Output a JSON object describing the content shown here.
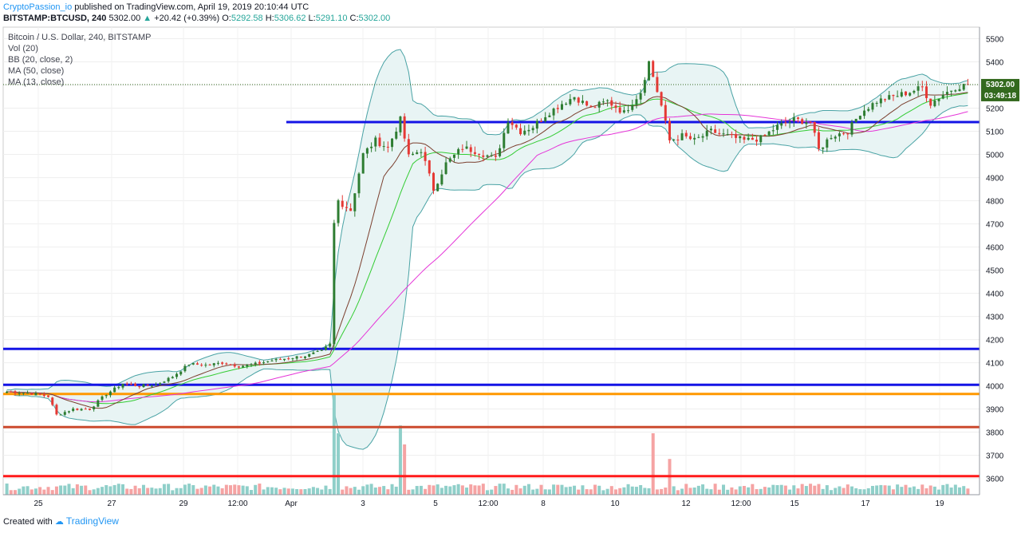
{
  "header": {
    "author": "CryptoPassion_io",
    "published_text": "published on TradingView.com, April 19, 2019 20:10:44 UTC",
    "symbol": "BITSTAMP:BTCUSD, 240",
    "last": "5302.00",
    "change_arrow": "▲",
    "change": "+20.42 (+0.39%)",
    "o_label": "O:",
    "o_value": "5292.58",
    "h_label": "H:",
    "h_value": "5306.62",
    "l_label": "L:",
    "l_value": "5291.10",
    "c_label": "C:",
    "c_value": "5302.00"
  },
  "legend": {
    "title": "Bitcoin / U.S. Dollar, 240, BITSTAMP",
    "vol": "Vol (20)",
    "bb": "BB (20, close, 2)",
    "ma50": "MA (50, close)",
    "ma13": "MA (13, close)"
  },
  "price_tag": {
    "price": "5302.00",
    "countdown": "03:49:18"
  },
  "footer": {
    "created_with": "Created with",
    "brand": "TradingView"
  },
  "colors": {
    "up": "#26a69a",
    "down": "#ef5350",
    "candle_up": "#2e7d32",
    "candle_down": "#e53935",
    "bb_band": "#4aa3a5",
    "bb_fill": "#e8f4f4",
    "ma50": "#e535d8",
    "ma13": "#7b3f2e",
    "bb_basis": "#33cc33",
    "blue_line": "#1414e6",
    "orange_line": "#ff9800",
    "brown_line": "#cc4a2e",
    "red_line": "#ff1a1a"
  },
  "chart_data": {
    "type": "candlestick",
    "title": "Bitcoin / U.S. Dollar, 240, BITSTAMP",
    "yticks": [
      3600,
      3700,
      3800,
      3900,
      4000,
      4100,
      4200,
      4300,
      4400,
      4500,
      4600,
      4700,
      4800,
      4900,
      5000,
      5100,
      5200,
      5300,
      5400,
      5500
    ],
    "ylim": [
      3530,
      5550
    ],
    "xticks": [
      "25",
      "27",
      "29",
      "12:00",
      "Apr",
      "3",
      "5",
      "12:00",
      "8",
      "10",
      "12",
      "12:00",
      "15",
      "17",
      "19"
    ],
    "last_price": 5302.0,
    "horizontal_lines": [
      {
        "price": 5140,
        "color": "#1414e6",
        "from_fraction": 0.29
      },
      {
        "price": 4160,
        "color": "#1414e6",
        "from_fraction": 0
      },
      {
        "price": 4005,
        "color": "#1414e6",
        "from_fraction": 0
      },
      {
        "price": 3965,
        "color": "#ff9800",
        "from_fraction": 0
      },
      {
        "price": 3822,
        "color": "#cc4a2e",
        "from_fraction": 0
      },
      {
        "price": 3610,
        "color": "#ff1a1a",
        "from_fraction": 0
      }
    ],
    "anchors": [
      [
        0,
        3975
      ],
      [
        5,
        3970
      ],
      [
        10,
        3955
      ],
      [
        12,
        3875
      ],
      [
        16,
        3900
      ],
      [
        20,
        3900
      ],
      [
        24,
        3965
      ],
      [
        28,
        4010
      ],
      [
        32,
        4000
      ],
      [
        36,
        4005
      ],
      [
        40,
        4040
      ],
      [
        44,
        4095
      ],
      [
        48,
        4090
      ],
      [
        52,
        4100
      ],
      [
        56,
        4085
      ],
      [
        60,
        4095
      ],
      [
        64,
        4110
      ],
      [
        68,
        4120
      ],
      [
        72,
        4130
      ],
      [
        76,
        4150
      ],
      [
        78,
        4180
      ],
      [
        79,
        4700
      ],
      [
        80,
        4800
      ],
      [
        83,
        4760
      ],
      [
        86,
        5000
      ],
      [
        89,
        5060
      ],
      [
        92,
        5030
      ],
      [
        95,
        5150
      ],
      [
        97,
        4990
      ],
      [
        100,
        5020
      ],
      [
        103,
        4850
      ],
      [
        106,
        4960
      ],
      [
        110,
        5030
      ],
      [
        114,
        5010
      ],
      [
        118,
        4980
      ],
      [
        121,
        5150
      ],
      [
        124,
        5100
      ],
      [
        127,
        5120
      ],
      [
        130,
        5170
      ],
      [
        134,
        5220
      ],
      [
        137,
        5250
      ],
      [
        141,
        5200
      ],
      [
        145,
        5230
      ],
      [
        149,
        5180
      ],
      [
        153,
        5270
      ],
      [
        155,
        5400
      ],
      [
        158,
        5210
      ],
      [
        160,
        5060
      ],
      [
        163,
        5080
      ],
      [
        166,
        5060
      ],
      [
        170,
        5100
      ],
      [
        174,
        5080
      ],
      [
        178,
        5060
      ],
      [
        182,
        5070
      ],
      [
        186,
        5120
      ],
      [
        190,
        5150
      ],
      [
        194,
        5140
      ],
      [
        196,
        5020
      ],
      [
        199,
        5080
      ],
      [
        203,
        5100
      ],
      [
        206,
        5180
      ],
      [
        210,
        5230
      ],
      [
        214,
        5250
      ],
      [
        218,
        5270
      ],
      [
        221,
        5290
      ],
      [
        223,
        5220
      ],
      [
        226,
        5260
      ],
      [
        229,
        5290
      ],
      [
        232,
        5302
      ]
    ],
    "volume_spikes": {
      "79": 0.9,
      "80": 0.55,
      "95": 0.62,
      "96": 0.45,
      "156": 0.55,
      "160": 0.32
    },
    "bb_period": 20,
    "bb_mult": 2,
    "ma_fast": 13,
    "ma_slow": 50
  }
}
